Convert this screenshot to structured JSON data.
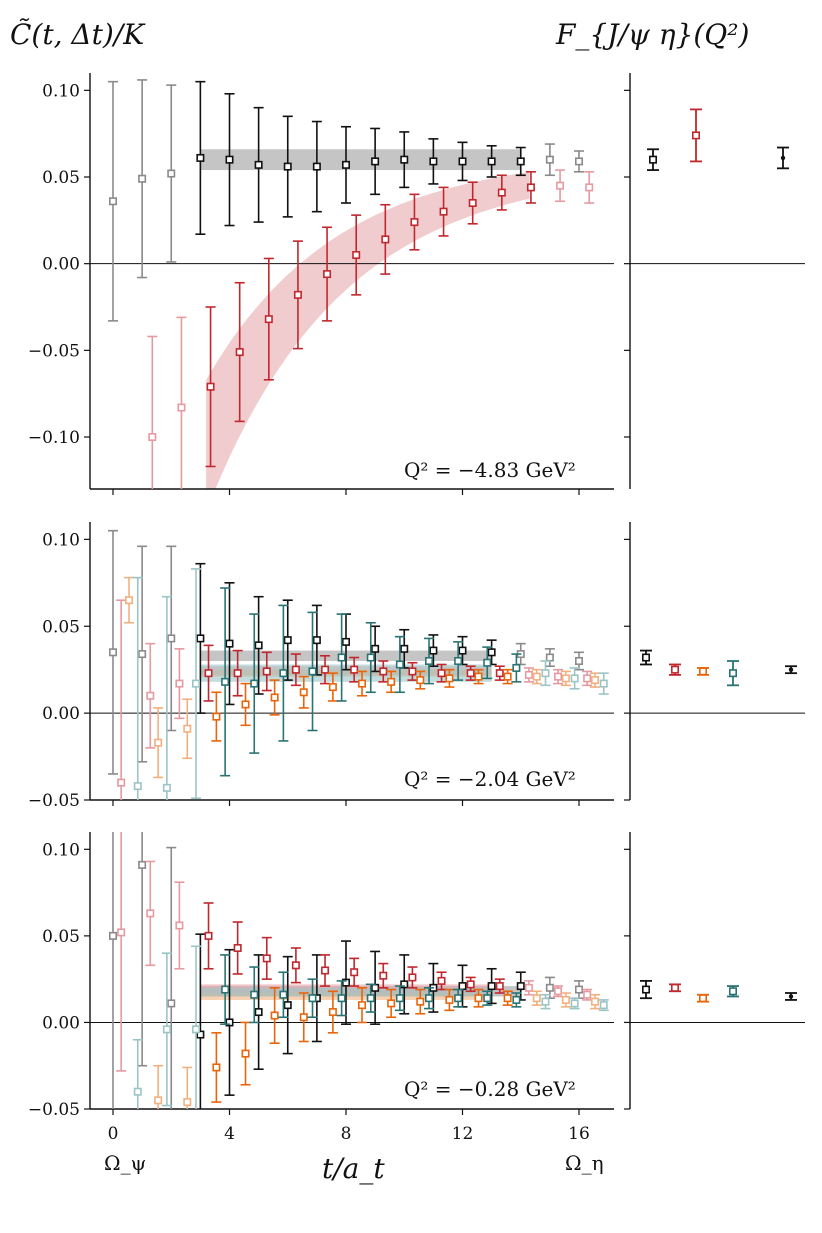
{
  "figure": {
    "left_title": "C̃(t, Δt)/K",
    "right_title": "F_{J/ψ η}(Q²)",
    "xlabel": "t/a_t",
    "x_annotations": [
      "Ω_ψ",
      "Ω_η"
    ]
  },
  "colors": {
    "black": "#111111",
    "gray": "#8a8a8a",
    "red": "#c0282e",
    "lightred": "#e59aa0",
    "orange": "#e8650b",
    "lightorange": "#f3b07f",
    "teal": "#2b7373",
    "lightteal": "#9cc4c6",
    "band_gray": "#9e9e9e",
    "band_red": "#e6a3a8"
  },
  "chart_data": [
    {
      "type": "scatter",
      "panel": "top",
      "label": "Q^2 = -4.83 GeV^2",
      "xlim": [
        -1.5,
        17.5
      ],
      "ylim": [
        -0.13,
        0.11
      ],
      "yticks": [
        "0.10",
        "0.05",
        "0.00",
        "−0.05",
        "−0.10"
      ],
      "ytick_values": [
        0.1,
        0.05,
        0.0,
        -0.05,
        -0.1
      ],
      "series": [
        {
          "name": "black",
          "color": "black",
          "offset": 0.0,
          "x": [
            0,
            1,
            2,
            3,
            4,
            5,
            6,
            7,
            8,
            9,
            10,
            11,
            12,
            13,
            14,
            15,
            16
          ],
          "y": [
            0.036,
            0.049,
            0.052,
            0.061,
            0.06,
            0.057,
            0.056,
            0.056,
            0.057,
            0.059,
            0.06,
            0.059,
            0.059,
            0.059,
            0.059,
            0.06,
            0.059
          ],
          "err": [
            0.069,
            0.057,
            0.051,
            0.044,
            0.038,
            0.033,
            0.029,
            0.026,
            0.022,
            0.019,
            0.016,
            0.013,
            0.011,
            0.009,
            0.008,
            0.009,
            0.006
          ],
          "fit_range": [
            3,
            14
          ]
        },
        {
          "name": "red",
          "color": "red",
          "offset": 0.35,
          "x": [
            1,
            2,
            3,
            4,
            5,
            6,
            7,
            8,
            9,
            10,
            11,
            12,
            13,
            14,
            15,
            16
          ],
          "y": [
            -0.1,
            -0.083,
            -0.071,
            -0.051,
            -0.032,
            -0.018,
            -0.006,
            0.005,
            0.014,
            0.024,
            0.03,
            0.035,
            0.041,
            0.044,
            0.045,
            0.044
          ],
          "err": [
            0.058,
            0.052,
            0.046,
            0.04,
            0.035,
            0.031,
            0.027,
            0.023,
            0.02,
            0.016,
            0.014,
            0.012,
            0.01,
            0.009,
            0.009,
            0.009
          ],
          "fit_range": [
            3,
            14
          ]
        }
      ],
      "bands": [
        {
          "color": "band_gray",
          "x0": 3,
          "x1": 14,
          "lo": [
            0.054,
            0.054
          ],
          "hi": [
            0.066,
            0.066
          ]
        },
        {
          "color": "band_red",
          "x0": 3.2,
          "x1": 14.3,
          "curve": true
        }
      ]
    },
    {
      "type": "scatter",
      "panel": "middle",
      "label": "Q^2 = -2.04 GeV^2",
      "xlim": [
        -1.5,
        17.5
      ],
      "ylim": [
        -0.05,
        0.11
      ],
      "yticks": [
        "0.10",
        "0.05",
        "0.00",
        "−0.05"
      ],
      "ytick_values": [
        0.1,
        0.05,
        0.0,
        -0.05
      ],
      "series": [
        {
          "name": "black",
          "color": "black",
          "offset": 0.0,
          "x": [
            0,
            1,
            2,
            3,
            4,
            5,
            6,
            7,
            8,
            9,
            10,
            11,
            12,
            13,
            14,
            15,
            16
          ],
          "y": [
            0.035,
            0.034,
            0.043,
            0.043,
            0.04,
            0.039,
            0.042,
            0.042,
            0.041,
            0.037,
            0.037,
            0.036,
            0.036,
            0.035,
            0.034,
            0.032,
            0.03
          ],
          "err": [
            0.07,
            0.062,
            0.053,
            0.043,
            0.035,
            0.028,
            0.023,
            0.02,
            0.016,
            0.013,
            0.011,
            0.009,
            0.008,
            0.007,
            0.006,
            0.005,
            0.005
          ],
          "fit_range": [
            3,
            13
          ]
        },
        {
          "name": "red",
          "color": "red",
          "offset": 0.28,
          "x": [
            0,
            1,
            2,
            3,
            4,
            5,
            6,
            7,
            8,
            9,
            10,
            11,
            12,
            13,
            14,
            15,
            16
          ],
          "y": [
            -0.04,
            0.01,
            0.017,
            0.023,
            0.023,
            0.024,
            0.025,
            0.025,
            0.025,
            0.024,
            0.024,
            0.023,
            0.023,
            0.023,
            0.022,
            0.021,
            0.02
          ],
          "err": [
            0.105,
            0.03,
            0.02,
            0.016,
            0.013,
            0.011,
            0.009,
            0.008,
            0.007,
            0.006,
            0.005,
            0.005,
            0.004,
            0.004,
            0.004,
            0.004,
            0.004
          ],
          "fit_range": [
            3,
            13
          ]
        },
        {
          "name": "orange",
          "color": "orange",
          "offset": 0.55,
          "x": [
            0,
            1,
            2,
            3,
            4,
            5,
            6,
            7,
            8,
            9,
            10,
            11,
            12,
            13,
            14,
            15,
            16
          ],
          "y": [
            0.065,
            -0.017,
            -0.009,
            -0.002,
            0.005,
            0.009,
            0.012,
            0.015,
            0.017,
            0.018,
            0.019,
            0.02,
            0.021,
            0.021,
            0.021,
            0.02,
            0.019
          ],
          "err": [
            0.013,
            0.02,
            0.017,
            0.014,
            0.012,
            0.01,
            0.009,
            0.008,
            0.007,
            0.006,
            0.005,
            0.005,
            0.004,
            0.004,
            0.004,
            0.004,
            0.004
          ],
          "fit_range": [
            3,
            13
          ]
        },
        {
          "name": "teal",
          "color": "teal",
          "offset": 0.85,
          "x": [
            0,
            1,
            2,
            3,
            4,
            5,
            6,
            7,
            8,
            9,
            10,
            11,
            12,
            13,
            14,
            15,
            16
          ],
          "y": [
            -0.042,
            -0.043,
            0.017,
            0.018,
            0.017,
            0.023,
            0.024,
            0.032,
            0.032,
            0.028,
            0.03,
            0.03,
            0.029,
            0.026,
            0.023,
            0.02,
            0.017
          ],
          "err": [
            0.12,
            0.11,
            0.066,
            0.054,
            0.04,
            0.039,
            0.034,
            0.025,
            0.02,
            0.016,
            0.013,
            0.011,
            0.009,
            0.008,
            0.007,
            0.006,
            0.006
          ],
          "fit_range": [
            3,
            13
          ]
        }
      ],
      "bands": [
        {
          "color": "band_gray",
          "x0": 3,
          "x1": 13,
          "lo": [
            0.03,
            0.03
          ],
          "hi": [
            0.036,
            0.036
          ]
        },
        {
          "color": "band_red",
          "x0": 3,
          "x1": 13,
          "lo": [
            0.022,
            0.022
          ],
          "hi": [
            0.027,
            0.027
          ]
        },
        {
          "color": "lightorange",
          "x0": 3,
          "x1": 13,
          "lo": [
            0.021,
            0.021
          ],
          "hi": [
            0.025,
            0.025
          ]
        },
        {
          "color": "lightteal",
          "x0": 3,
          "x1": 13,
          "lo": [
            0.018,
            0.018
          ],
          "hi": [
            0.028,
            0.028
          ]
        }
      ]
    },
    {
      "type": "scatter",
      "panel": "bottom",
      "label": "Q^2 = -0.28 GeV^2",
      "xlim": [
        -1.5,
        17.5
      ],
      "ylim": [
        -0.05,
        0.11
      ],
      "yticks": [
        "0.10",
        "0.05",
        "0.00",
        "−0.05"
      ],
      "ytick_values": [
        0.1,
        0.05,
        0.0,
        -0.05
      ],
      "series": [
        {
          "name": "gray-black",
          "color": "black",
          "offset": 0.0,
          "x": [
            0,
            1,
            2,
            3,
            4,
            5,
            6,
            7,
            8,
            9,
            10,
            11,
            12,
            13,
            14,
            15,
            16
          ],
          "y": [
            0.05,
            0.091,
            0.011,
            -0.007,
            0.0,
            0.006,
            0.01,
            0.014,
            0.023,
            0.02,
            0.022,
            0.02,
            0.021,
            0.021,
            0.021,
            0.02,
            0.019
          ],
          "err": [
            0.13,
            0.116,
            0.09,
            0.058,
            0.042,
            0.033,
            0.028,
            0.025,
            0.024,
            0.021,
            0.017,
            0.014,
            0.012,
            0.01,
            0.008,
            0.006,
            0.005
          ],
          "fit_range": [
            3,
            14
          ]
        },
        {
          "name": "red",
          "color": "red",
          "offset": 0.28,
          "x": [
            0,
            1,
            2,
            3,
            4,
            5,
            6,
            7,
            8,
            9,
            10,
            11,
            12,
            13,
            14,
            15,
            16
          ],
          "y": [
            0.052,
            0.063,
            0.056,
            0.05,
            0.043,
            0.037,
            0.033,
            0.03,
            0.029,
            0.027,
            0.026,
            0.024,
            0.022,
            0.021,
            0.02,
            0.018,
            0.016
          ],
          "err": [
            0.08,
            0.03,
            0.025,
            0.019,
            0.015,
            0.012,
            0.01,
            0.009,
            0.008,
            0.007,
            0.006,
            0.005,
            0.004,
            0.004,
            0.004,
            0.003,
            0.003
          ],
          "fit_range": [
            3,
            13
          ]
        },
        {
          "name": "orange",
          "color": "orange",
          "offset": 0.55,
          "x": [
            1,
            2,
            3,
            4,
            5,
            6,
            7,
            8,
            9,
            10,
            11,
            12,
            13,
            14,
            15,
            16
          ],
          "y": [
            -0.045,
            -0.046,
            -0.026,
            -0.018,
            0.004,
            0.003,
            0.006,
            0.01,
            0.011,
            0.012,
            0.013,
            0.014,
            0.014,
            0.014,
            0.013,
            0.012
          ],
          "err": [
            0.02,
            0.02,
            0.02,
            0.018,
            0.016,
            0.014,
            0.012,
            0.01,
            0.008,
            0.007,
            0.006,
            0.005,
            0.004,
            0.004,
            0.004,
            0.004
          ],
          "fit_range": [
            3,
            13
          ]
        },
        {
          "name": "teal",
          "color": "teal",
          "offset": 0.85,
          "x": [
            0,
            1,
            2,
            3,
            4,
            5,
            6,
            7,
            8,
            9,
            10,
            11,
            12,
            13,
            14,
            15,
            16
          ],
          "y": [
            -0.04,
            -0.004,
            -0.004,
            0.019,
            0.016,
            0.016,
            0.014,
            0.014,
            0.014,
            0.014,
            0.014,
            0.014,
            0.014,
            0.013,
            0.012,
            0.011,
            0.01
          ],
          "err": [
            0.03,
            0.044,
            0.048,
            0.02,
            0.016,
            0.013,
            0.011,
            0.01,
            0.008,
            0.007,
            0.006,
            0.005,
            0.004,
            0.004,
            0.004,
            0.003,
            0.003
          ],
          "fit_range": [
            3,
            13
          ]
        }
      ],
      "bands": [
        {
          "color": "band_gray",
          "x0": 3,
          "x1": 14,
          "lo": [
            0.015,
            0.015
          ],
          "hi": [
            0.021,
            0.021
          ]
        },
        {
          "color": "band_red",
          "x0": 3,
          "x1": 13,
          "lo": [
            0.017,
            0.017
          ],
          "hi": [
            0.022,
            0.022
          ]
        },
        {
          "color": "lightorange",
          "x0": 3,
          "x1": 13,
          "lo": [
            0.013,
            0.013
          ],
          "hi": [
            0.017,
            0.017
          ]
        },
        {
          "color": "lightteal",
          "x0": 3,
          "x1": 13,
          "lo": [
            0.015,
            0.015
          ],
          "hi": [
            0.02,
            0.02
          ]
        }
      ]
    }
  ],
  "side_data": [
    {
      "panel": "top",
      "points": [
        {
          "color": "black",
          "y": 0.06,
          "err": 0.006,
          "marker": "square"
        },
        {
          "color": "red",
          "y": 0.074,
          "err": 0.015,
          "marker": "square"
        },
        {
          "color": "black",
          "y": 0.061,
          "err": 0.006,
          "marker": "star"
        }
      ]
    },
    {
      "panel": "middle",
      "points": [
        {
          "color": "black",
          "y": 0.032,
          "err": 0.004,
          "marker": "square"
        },
        {
          "color": "red",
          "y": 0.025,
          "err": 0.003,
          "marker": "square"
        },
        {
          "color": "orange",
          "y": 0.024,
          "err": 0.002,
          "marker": "square"
        },
        {
          "color": "teal",
          "y": 0.023,
          "err": 0.007,
          "marker": "square"
        },
        {
          "color": "black",
          "y": 0.025,
          "err": 0.002,
          "marker": "star"
        }
      ]
    },
    {
      "panel": "bottom",
      "points": [
        {
          "color": "black",
          "y": 0.019,
          "err": 0.005,
          "marker": "square"
        },
        {
          "color": "red",
          "y": 0.02,
          "err": 0.002,
          "marker": "square"
        },
        {
          "color": "orange",
          "y": 0.014,
          "err": 0.002,
          "marker": "square"
        },
        {
          "color": "teal",
          "y": 0.018,
          "err": 0.003,
          "marker": "square"
        },
        {
          "color": "black",
          "y": 0.015,
          "err": 0.002,
          "marker": "star"
        }
      ]
    }
  ],
  "xticks": [
    "0",
    "4",
    "8",
    "12",
    "16"
  ],
  "xtick_values": [
    0,
    4,
    8,
    12,
    16
  ],
  "panel_labels_text": [
    "Q² = −4.83 GeV²",
    "Q² = −2.04 GeV²",
    "Q² = −0.28 GeV²"
  ]
}
